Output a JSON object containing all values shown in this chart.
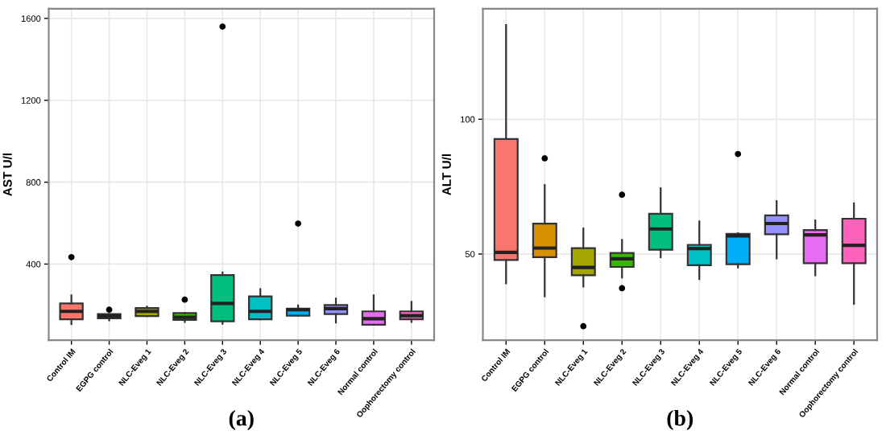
{
  "chart_data": [
    {
      "type": "box",
      "ylabel": "AST U/l",
      "annotations": [
        "(a)"
      ],
      "ylim": [
        28,
        1647
      ],
      "yticks": [
        400,
        800,
        1200,
        1600
      ],
      "grid": true,
      "categories": [
        "Control IM",
        "EGPG control",
        "NLC-Eveg 1",
        "NLC-Eveg 2",
        "NLC-Eveg 3",
        "NLC-Eveg 4",
        "NLC-Eveg 5",
        "NLC-Eveg 6",
        "Normal control",
        "Oophorectomy control"
      ],
      "colors": [
        "#f8766d",
        "#d89000",
        "#a3a500",
        "#39b600",
        "#00bf7d",
        "#00bfc4",
        "#00b0f6",
        "#9590ff",
        "#e76bf3",
        "#ff62bc"
      ],
      "boxes": [
        {
          "low": 107,
          "q1": 130,
          "median": 169,
          "q3": 208,
          "high": 247,
          "outliers": [
            434
          ]
        },
        {
          "low": 125,
          "q1": 135,
          "median": 146,
          "q3": 156,
          "high": 156,
          "outliers": [
            177
          ]
        },
        {
          "low": 146,
          "q1": 146,
          "median": 169,
          "q3": 185,
          "high": 192
        },
        {
          "low": 117,
          "q1": 127,
          "median": 140,
          "q3": 161,
          "high": 161,
          "outliers": [
            226
          ]
        },
        {
          "low": 109,
          "q1": 120,
          "median": 208,
          "q3": 346,
          "high": 359,
          "outliers": [
            1560
          ]
        },
        {
          "low": 130,
          "q1": 130,
          "median": 169,
          "q3": 242,
          "high": 278
        },
        {
          "low": 148,
          "q1": 148,
          "median": 177,
          "q3": 182,
          "high": 198,
          "outliers": [
            598
          ]
        },
        {
          "low": 114,
          "q1": 156,
          "median": 182,
          "q3": 200,
          "high": 231
        },
        {
          "low": 104,
          "q1": 104,
          "median": 133,
          "q3": 169,
          "high": 247
        },
        {
          "low": 117,
          "q1": 130,
          "median": 148,
          "q3": 169,
          "high": 216
        }
      ]
    },
    {
      "type": "box",
      "ylabel": "ALT U/l",
      "annotations": [
        "(b)"
      ],
      "ylim": [
        18,
        141
      ],
      "yticks": [
        50,
        100
      ],
      "grid": true,
      "categories": [
        "Control IM",
        "EGPG control",
        "NLC-Eveg 1",
        "NLC-Eveg 2",
        "NLC-Eveg 3",
        "NLC-Eveg 4",
        "NLC-Eveg 5",
        "NLC-Eveg 6",
        "Normal control",
        "Oophorectomy control"
      ],
      "colors": [
        "#f8766d",
        "#d89000",
        "#a3a500",
        "#39b600",
        "#00bf7d",
        "#00bfc4",
        "#00b0f6",
        "#9590ff",
        "#e76bf3",
        "#ff62bc"
      ],
      "boxes": [
        {
          "low": 39.1,
          "q1": 47.8,
          "median": 50.6,
          "q3": 92.7,
          "high": 135
        },
        {
          "low": 34.3,
          "q1": 48.8,
          "median": 52.2,
          "q3": 61.3,
          "high": 75.6,
          "outliers": [
            85.5
          ]
        },
        {
          "low": 37.9,
          "q1": 42.1,
          "median": 45,
          "q3": 52.2,
          "high": 59.5,
          "outliers": [
            23.2
          ]
        },
        {
          "low": 41.3,
          "q1": 45.2,
          "median": 48.2,
          "q3": 50.4,
          "high": 55.2,
          "outliers": [
            72,
            37.3
          ]
        },
        {
          "low": 48.8,
          "q1": 51.6,
          "median": 59.3,
          "q3": 64.9,
          "high": 74.4
        },
        {
          "low": 40.7,
          "q1": 45.8,
          "median": 52,
          "q3": 53.4,
          "high": 62.1
        },
        {
          "low": 45,
          "q1": 46.2,
          "median": 56.7,
          "q3": 57.5,
          "high": 57.7,
          "outliers": [
            87.1
          ]
        },
        {
          "low": 48.4,
          "q1": 57.3,
          "median": 61.3,
          "q3": 64.3,
          "high": 69.6
        },
        {
          "low": 42.1,
          "q1": 46.6,
          "median": 57.1,
          "q3": 58.9,
          "high": 62.5
        },
        {
          "low": 31.5,
          "q1": 46.6,
          "median": 53.2,
          "q3": 63.1,
          "high": 68.8
        }
      ]
    }
  ]
}
